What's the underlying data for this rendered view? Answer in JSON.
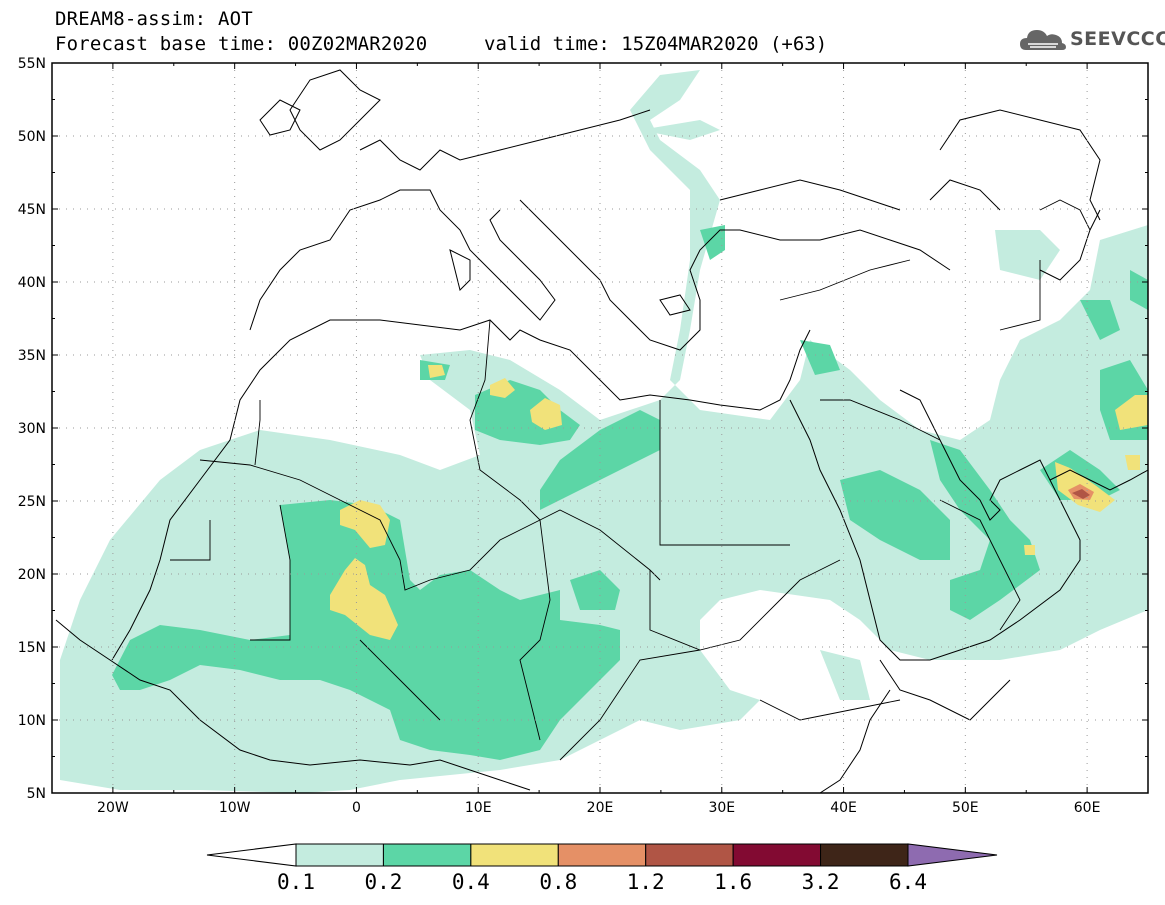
{
  "header": {
    "title_line1": "DREAM8-assim: AOT",
    "title_line2": "Forecast base time: 00Z02MAR2020",
    "valid_time": "valid time: 15Z04MAR2020 (+63)"
  },
  "logo": {
    "text": "SEEVCCC",
    "icon": "cloud-icon"
  },
  "map": {
    "projection": "lat-lon",
    "lon_range": [
      -25,
      65
    ],
    "lat_range": [
      5,
      55
    ],
    "grid": "dotted",
    "lat_ticks": [
      "55N",
      "50N",
      "45N",
      "40N",
      "35N",
      "30N",
      "25N",
      "20N",
      "15N",
      "10N",
      "5N"
    ],
    "lon_ticks": [
      "20W",
      "10W",
      "0",
      "10E",
      "20E",
      "30E",
      "40E",
      "50E",
      "60E"
    ]
  },
  "colorbar": {
    "levels": [
      "0.1",
      "0.2",
      "0.4",
      "0.8",
      "1.2",
      "1.6",
      "3.2",
      "6.4"
    ],
    "colors": [
      "#ffffff",
      "#c4ecdf",
      "#5cd6a6",
      "#f1e27a",
      "#e59066",
      "#b05545",
      "#820a32",
      "#3e2518",
      "#8e6bb0"
    ],
    "extend": "both"
  }
}
